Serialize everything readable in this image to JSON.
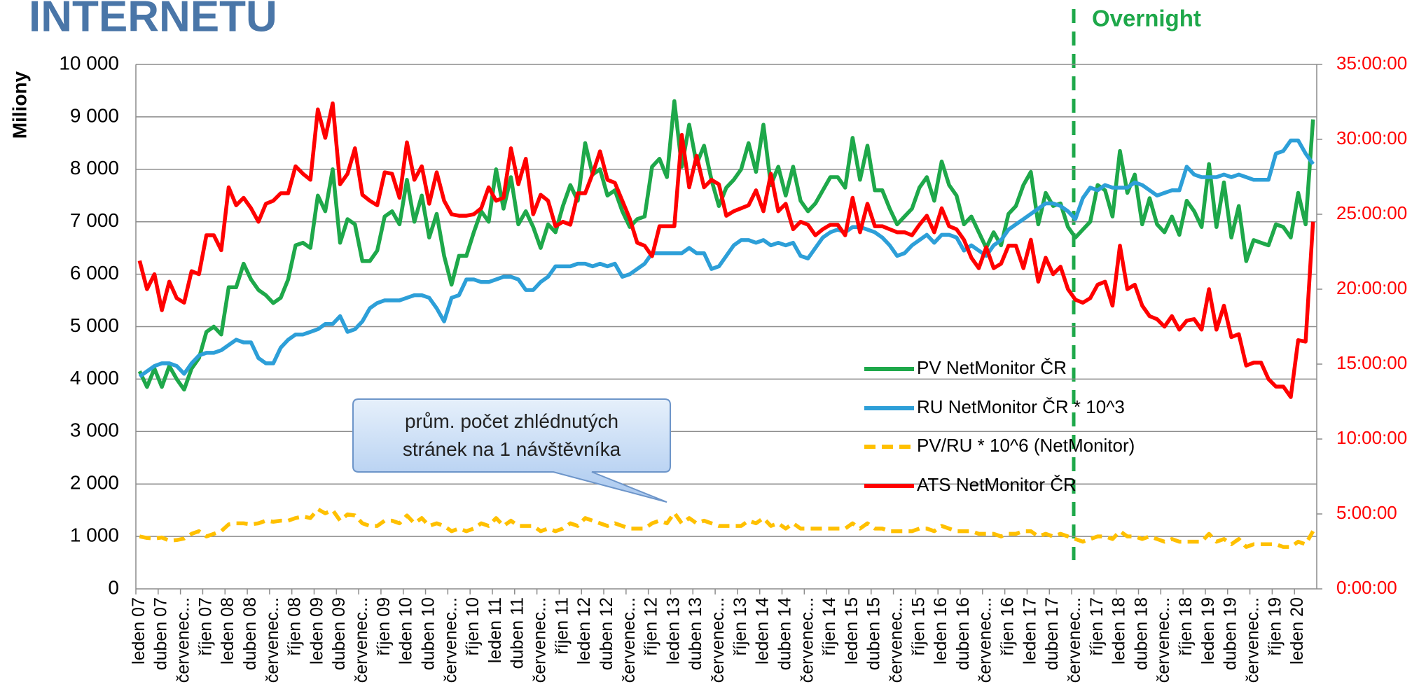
{
  "chart_data": {
    "type": "line",
    "title": "INTERNETU",
    "ylabel": "Miliony",
    "annotation_overnight": "Overnight",
    "callout": "prům. počet zhlédnutých stránek na 1 návštěvníka",
    "categories": [
      "leden 07",
      null,
      null,
      "duben 07",
      null,
      null,
      "červenec...",
      null,
      null,
      "říjen 07",
      null,
      null,
      "leden 08",
      null,
      null,
      "duben 08",
      null,
      null,
      "červenec...",
      null,
      null,
      "říjen 08",
      null,
      null,
      "leden 09",
      null,
      null,
      "duben 09",
      null,
      null,
      "červenec...",
      null,
      null,
      "říjen 09",
      null,
      null,
      "leden 10",
      null,
      null,
      "duben 10",
      null,
      null,
      "červenec...",
      null,
      null,
      "říjen 10",
      null,
      null,
      "leden 11",
      null,
      null,
      "duben 11",
      null,
      null,
      "červenec...",
      null,
      null,
      "říjen 11",
      null,
      null,
      "leden 12",
      null,
      null,
      "duben 12",
      null,
      null,
      "červenec...",
      null,
      null,
      "říjen 12",
      null,
      null,
      "leden 13",
      null,
      null,
      "duben 13",
      null,
      null,
      "červenec...",
      null,
      null,
      "říjen 13",
      null,
      null,
      "leden 14",
      null,
      null,
      "duben 14",
      null,
      null,
      "červenec...",
      null,
      null,
      "říjen 14",
      null,
      null,
      "leden 15",
      null,
      null,
      "duben 15",
      null,
      null,
      "červenec...",
      null,
      null,
      "říjen 15",
      null,
      null,
      "leden 16",
      null,
      null,
      "duben 16",
      null,
      null,
      "červenec...",
      null,
      null,
      "říjen 16",
      null,
      null,
      "leden 17",
      null,
      null,
      "duben 17",
      null,
      null,
      "červenec...",
      null,
      null,
      "říjen 17",
      null,
      null,
      "leden 18",
      null,
      null,
      "duben 18",
      null,
      null,
      "červenec...",
      null,
      null,
      "říjen 18",
      null,
      null,
      "leden 19",
      null,
      null,
      "duben 19",
      null,
      null,
      "červenec...",
      null,
      null,
      "říjen 19",
      null,
      null,
      "leden 20",
      null,
      null
    ],
    "ylim": [
      0,
      10000
    ],
    "yticks": [
      0,
      {
        "value": 1000,
        "label": "1 000"
      },
      {
        "value": 2000,
        "label": "2 000"
      },
      {
        "value": 3000,
        "label": "3 000"
      },
      {
        "value": 4000,
        "label": "4 000"
      },
      {
        "value": 5000,
        "label": "5 000"
      },
      {
        "value": 6000,
        "label": "6 000"
      },
      {
        "value": 7000,
        "label": "7 000"
      },
      {
        "value": 8000,
        "label": "8 000"
      },
      {
        "value": 9000,
        "label": "9 000"
      },
      {
        "value": 10000,
        "label": "10 000"
      }
    ],
    "y2lim": [
      0,
      35
    ],
    "y2ticks": [
      {
        "value": 0,
        "label": "0:00:00"
      },
      {
        "value": 5,
        "label": "5:00:00"
      },
      {
        "value": 10,
        "label": "10:00:00"
      },
      {
        "value": 15,
        "label": "15:00:00"
      },
      {
        "value": 20,
        "label": "20:00:00"
      },
      {
        "value": 25,
        "label": "25:00:00"
      },
      {
        "value": 30,
        "label": "30:00:00"
      },
      {
        "value": 35,
        "label": "35:00:00"
      }
    ],
    "grid": true,
    "series": [
      {
        "name": "PV NetMonitor ČR",
        "color": "#1ea84a",
        "dashed": false,
        "values": [
          4150,
          3850,
          4200,
          3850,
          4250,
          4000,
          3800,
          4200,
          4400,
          4900,
          5000,
          4850,
          5750,
          5750,
          6200,
          5900,
          5700,
          5600,
          5450,
          5550,
          5900,
          6550,
          6600,
          6500,
          7500,
          7200,
          8000,
          6600,
          7050,
          6950,
          6250,
          6250,
          6450,
          7100,
          7200,
          6950,
          7800,
          7000,
          7500,
          6700,
          7150,
          6350,
          5800,
          6350,
          6350,
          6800,
          7200,
          7000,
          8000,
          7250,
          7850,
          6950,
          7200,
          6900,
          6500,
          6950,
          6800,
          7300,
          7700,
          7400,
          8500,
          7900,
          8000,
          7500,
          7600,
          7200,
          6900,
          7050,
          7100,
          8050,
          8200,
          7850,
          9300,
          8050,
          8850,
          8100,
          8450,
          7800,
          7300,
          7650,
          7800,
          8000,
          8500,
          7950,
          8850,
          7700,
          8050,
          7500,
          8050,
          7400,
          7200,
          7350,
          7600,
          7850,
          7850,
          7650,
          8600,
          7800,
          8450,
          7600,
          7600,
          7250,
          6950,
          7100,
          7250,
          7650,
          7850,
          7400,
          8150,
          7700,
          7500,
          6950,
          7100,
          6800,
          6500,
          6800,
          6550,
          7150,
          7300,
          7700,
          7950,
          6950,
          7550,
          7300,
          7350,
          6900,
          6700,
          6850,
          7000,
          7700,
          7600,
          7100,
          8350,
          7550,
          7900,
          6950,
          7450,
          6950,
          6800,
          7100,
          6750,
          7400,
          7200,
          6900,
          8100,
          6900,
          7750,
          6700,
          7300,
          6250,
          6650,
          6600,
          6550,
          6950,
          6900,
          6700,
          7550,
          6950,
          8950
        ]
      },
      {
        "name": "RU NetMonitor ČR * 10^3",
        "color": "#2d9fd8",
        "dashed": false,
        "values": [
          4050,
          4150,
          4250,
          4300,
          4300,
          4250,
          4100,
          4300,
          4450,
          4500,
          4500,
          4550,
          4650,
          4750,
          4700,
          4700,
          4400,
          4300,
          4300,
          4600,
          4750,
          4850,
          4850,
          4900,
          4950,
          5050,
          5050,
          5200,
          4900,
          4950,
          5100,
          5350,
          5450,
          5500,
          5500,
          5500,
          5550,
          5600,
          5600,
          5550,
          5350,
          5100,
          5550,
          5600,
          5900,
          5900,
          5850,
          5850,
          5900,
          5950,
          5950,
          5900,
          5700,
          5700,
          5850,
          5950,
          6150,
          6150,
          6150,
          6200,
          6200,
          6150,
          6200,
          6150,
          6200,
          5950,
          6000,
          6100,
          6200,
          6400,
          6400,
          6400,
          6400,
          6400,
          6500,
          6400,
          6400,
          6100,
          6150,
          6350,
          6550,
          6650,
          6650,
          6600,
          6650,
          6550,
          6600,
          6550,
          6600,
          6350,
          6300,
          6500,
          6700,
          6800,
          6850,
          6800,
          6900,
          6900,
          6850,
          6800,
          6700,
          6550,
          6350,
          6400,
          6550,
          6650,
          6750,
          6600,
          6750,
          6750,
          6700,
          6450,
          6550,
          6450,
          6350,
          6550,
          6650,
          6850,
          6950,
          7050,
          7150,
          7250,
          7350,
          7350,
          7300,
          7200,
          7050,
          7450,
          7650,
          7600,
          7700,
          7650,
          7650,
          7650,
          7750,
          7700,
          7600,
          7500,
          7550,
          7600,
          7600,
          8050,
          7900,
          7850,
          7850,
          7850,
          7900,
          7850,
          7900,
          7850,
          7800,
          7800,
          7800,
          8300,
          8350,
          8550,
          8550,
          8300,
          8100
        ]
      },
      {
        "name": "PV/RU * 10^6 (NetMonitor)",
        "color": "#ffc000",
        "dashed": true,
        "values": [
          1000,
          970,
          960,
          980,
          920,
          930,
          960,
          1050,
          1100,
          1000,
          1050,
          1100,
          1230,
          1250,
          1250,
          1230,
          1250,
          1300,
          1280,
          1300,
          1300,
          1350,
          1380,
          1350,
          1520,
          1440,
          1500,
          1300,
          1420,
          1400,
          1250,
          1200,
          1200,
          1300,
          1300,
          1250,
          1400,
          1250,
          1350,
          1200,
          1250,
          1200,
          1100,
          1150,
          1100,
          1150,
          1250,
          1200,
          1350,
          1200,
          1300,
          1200,
          1200,
          1200,
          1100,
          1150,
          1100,
          1150,
          1250,
          1200,
          1350,
          1300,
          1250,
          1200,
          1250,
          1200,
          1150,
          1150,
          1150,
          1250,
          1300,
          1250,
          1450,
          1250,
          1350,
          1250,
          1300,
          1250,
          1200,
          1200,
          1200,
          1200,
          1300,
          1250,
          1350,
          1200,
          1250,
          1150,
          1250,
          1150,
          1150,
          1150,
          1150,
          1150,
          1150,
          1150,
          1250,
          1150,
          1250,
          1150,
          1150,
          1100,
          1100,
          1100,
          1100,
          1150,
          1150,
          1100,
          1200,
          1150,
          1100,
          1100,
          1100,
          1050,
          1050,
          1050,
          1000,
          1050,
          1050,
          1100,
          1100,
          1000,
          1050,
          1000,
          1050,
          1000,
          950,
          900,
          950,
          1000,
          1000,
          950,
          1100,
          1000,
          1000,
          950,
          1000,
          950,
          900,
          950,
          900,
          900,
          900,
          900,
          1050,
          900,
          950,
          850,
          950,
          800,
          850,
          850,
          850,
          850,
          800,
          800,
          900,
          850,
          1100
        ]
      },
      {
        "name": "ATS NetMonitor ČR",
        "color": "#ff0000",
        "dashed": false,
        "axis": "y2",
        "values": [
          21.9,
          20.0,
          21.0,
          18.6,
          20.5,
          19.4,
          19.1,
          21.2,
          21.0,
          23.6,
          23.6,
          22.6,
          26.8,
          25.6,
          26.1,
          25.4,
          24.5,
          25.7,
          25.9,
          26.4,
          26.4,
          28.2,
          27.7,
          27.3,
          32.0,
          30.1,
          32.4,
          27.0,
          27.7,
          29.4,
          26.3,
          25.9,
          25.6,
          27.8,
          27.7,
          26.1,
          29.8,
          27.3,
          28.2,
          25.7,
          27.8,
          25.9,
          25.0,
          24.9,
          24.9,
          25.0,
          25.4,
          26.8,
          25.9,
          26.1,
          29.4,
          27.0,
          28.7,
          25.0,
          26.3,
          25.9,
          24.2,
          24.5,
          24.3,
          26.4,
          26.4,
          27.7,
          29.2,
          27.3,
          27.1,
          25.9,
          24.7,
          23.1,
          22.9,
          22.2,
          24.2,
          24.2,
          24.2,
          30.3,
          26.8,
          28.9,
          26.8,
          27.3,
          27.0,
          24.9,
          25.2,
          25.4,
          25.6,
          26.6,
          25.2,
          27.7,
          25.2,
          25.7,
          24.0,
          24.5,
          24.3,
          23.6,
          24.0,
          24.3,
          24.3,
          23.6,
          26.1,
          23.8,
          25.7,
          24.2,
          24.2,
          24.0,
          23.8,
          23.8,
          23.6,
          24.3,
          24.9,
          23.8,
          25.4,
          24.2,
          24.0,
          23.3,
          22.1,
          21.4,
          22.8,
          21.4,
          21.7,
          22.9,
          22.9,
          21.4,
          23.3,
          20.5,
          22.1,
          21.0,
          21.5,
          20.0,
          19.3,
          19.1,
          19.4,
          20.3,
          20.5,
          18.9,
          22.9,
          20.0,
          20.3,
          18.9,
          18.2,
          18.0,
          17.5,
          18.2,
          17.3,
          17.9,
          18.0,
          17.3,
          20.0,
          17.3,
          18.9,
          16.8,
          17.0,
          14.9,
          15.1,
          15.1,
          14.0,
          13.5,
          13.5,
          12.8,
          16.6,
          16.5,
          24.5
        ]
      }
    ]
  }
}
